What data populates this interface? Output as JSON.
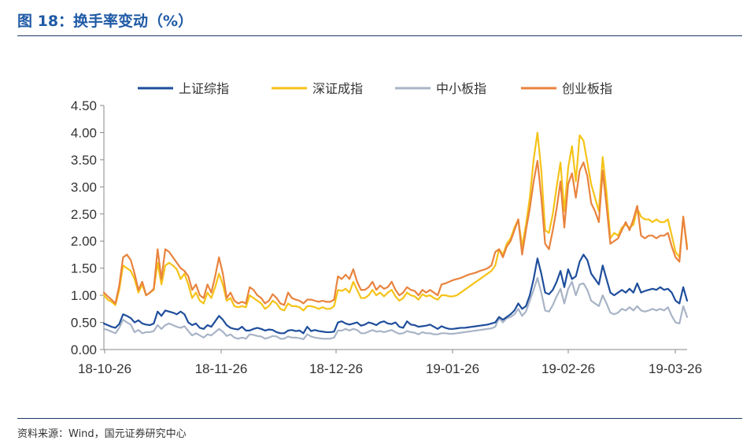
{
  "figure": {
    "title": "图 18：换手率变动（%）",
    "source": "资料来源：Wind，国元证券研究中心"
  },
  "chart_data": {
    "type": "line",
    "title": "换手率变动（%）",
    "xlabel": "",
    "ylabel": "",
    "ylim": [
      0,
      4.5
    ],
    "yticks": [
      "0.00",
      "0.50",
      "1.00",
      "1.50",
      "2.00",
      "2.50",
      "3.00",
      "3.50",
      "4.00",
      "4.50"
    ],
    "xticks": [
      "18-10-26",
      "18-11-26",
      "18-12-26",
      "19-01-26",
      "19-02-26",
      "19-03-26"
    ],
    "legend_position": "top",
    "x": [
      0,
      1,
      2,
      3,
      4,
      5,
      6,
      7,
      8,
      9,
      10,
      11,
      12,
      13,
      14,
      15,
      16,
      17,
      18,
      19,
      20,
      21,
      22,
      23,
      24,
      25,
      26,
      27,
      28,
      29,
      30,
      31,
      32,
      33,
      34,
      35,
      36,
      37,
      38,
      39,
      40,
      41,
      42,
      43,
      44,
      45,
      46,
      47,
      48,
      49,
      50,
      51,
      52,
      53,
      54,
      55,
      56,
      57,
      58,
      59,
      60,
      61,
      62,
      63,
      64,
      65,
      66,
      67,
      68,
      69,
      70,
      71,
      72,
      73,
      74,
      75,
      76,
      77,
      78,
      79,
      80,
      81,
      82,
      83,
      84,
      85,
      86,
      87,
      88,
      89,
      90,
      91,
      92,
      93,
      94,
      95,
      96,
      97,
      98,
      99,
      100,
      101,
      102,
      103,
      104,
      105,
      106,
      107,
      108,
      109,
      110,
      111,
      112,
      113,
      114,
      115,
      116,
      117,
      118,
      119,
      120,
      121,
      122,
      123,
      124,
      125,
      126,
      127,
      128,
      129,
      130,
      131,
      132,
      133,
      134,
      135,
      136,
      137,
      138,
      139,
      140,
      141,
      142,
      143,
      144,
      145,
      146,
      147,
      148,
      149,
      150,
      151,
      152
    ],
    "series": [
      {
        "name": "上证综指",
        "color": "#1f4e9c",
        "values": [
          0.48,
          0.45,
          0.42,
          0.4,
          0.47,
          0.65,
          0.62,
          0.58,
          0.5,
          0.54,
          0.48,
          0.46,
          0.45,
          0.48,
          0.7,
          0.62,
          0.72,
          0.7,
          0.68,
          0.65,
          0.7,
          0.65,
          0.5,
          0.45,
          0.48,
          0.4,
          0.38,
          0.45,
          0.42,
          0.52,
          0.62,
          0.55,
          0.45,
          0.4,
          0.38,
          0.37,
          0.42,
          0.35,
          0.35,
          0.38,
          0.4,
          0.38,
          0.35,
          0.37,
          0.36,
          0.32,
          0.3,
          0.3,
          0.35,
          0.36,
          0.34,
          0.35,
          0.3,
          0.42,
          0.34,
          0.36,
          0.34,
          0.33,
          0.32,
          0.32,
          0.33,
          0.5,
          0.52,
          0.48,
          0.46,
          0.48,
          0.5,
          0.44,
          0.46,
          0.5,
          0.48,
          0.45,
          0.5,
          0.52,
          0.48,
          0.47,
          0.5,
          0.42,
          0.4,
          0.52,
          0.46,
          0.45,
          0.42,
          0.43,
          0.44,
          0.46,
          0.42,
          0.38,
          0.43,
          0.4,
          0.38,
          0.38,
          0.39,
          0.4,
          0.4,
          0.41,
          0.42,
          0.43,
          0.44,
          0.45,
          0.46,
          0.48,
          0.5,
          0.6,
          0.55,
          0.6,
          0.65,
          0.72,
          0.85,
          0.75,
          0.8,
          1.0,
          1.3,
          1.68,
          1.4,
          1.05,
          1.02,
          1.1,
          1.25,
          1.45,
          1.15,
          1.48,
          1.3,
          1.35,
          1.62,
          1.75,
          1.65,
          1.4,
          1.3,
          1.2,
          1.55,
          1.3,
          1.05,
          1.0,
          1.05,
          1.1,
          1.05,
          1.12,
          1.05,
          1.22,
          1.05,
          1.08,
          1.1,
          1.12,
          1.1,
          1.15,
          1.1,
          1.12,
          1.05,
          0.9,
          0.85,
          1.15,
          0.9
        ]
      },
      {
        "name": "深证成指",
        "color": "#f5c318",
        "values": [
          1.0,
          0.92,
          0.88,
          0.82,
          1.1,
          1.55,
          1.5,
          1.45,
          1.3,
          1.05,
          1.2,
          1.0,
          1.05,
          1.1,
          1.6,
          1.2,
          1.55,
          1.6,
          1.55,
          1.48,
          1.3,
          1.4,
          1.2,
          0.95,
          1.05,
          0.9,
          0.85,
          1.05,
          0.95,
          1.15,
          1.4,
          1.2,
          0.9,
          0.95,
          0.8,
          0.78,
          0.8,
          0.78,
          1.0,
          0.95,
          0.9,
          0.85,
          0.75,
          0.8,
          0.9,
          0.85,
          0.75,
          0.72,
          0.85,
          0.8,
          0.8,
          0.78,
          0.72,
          0.8,
          0.8,
          0.78,
          0.75,
          0.78,
          0.75,
          0.75,
          0.8,
          1.1,
          1.08,
          1.12,
          1.05,
          1.25,
          1.1,
          0.95,
          0.95,
          1.0,
          1.1,
          1.0,
          1.05,
          0.98,
          1.05,
          1.1,
          0.98,
          0.9,
          0.95,
          1.05,
          1.0,
          0.98,
          0.92,
          1.02,
          0.98,
          1.0,
          0.95,
          0.92,
          1.0,
          1.0,
          0.98,
          0.98,
          1.0,
          1.05,
          1.1,
          1.15,
          1.2,
          1.25,
          1.3,
          1.35,
          1.4,
          1.45,
          1.55,
          1.85,
          1.75,
          1.95,
          2.05,
          2.25,
          2.4,
          1.9,
          2.3,
          2.8,
          3.5,
          4.0,
          3.3,
          2.2,
          2.15,
          2.5,
          3.0,
          3.45,
          2.55,
          3.35,
          3.75,
          3.1,
          3.95,
          3.85,
          3.45,
          3.05,
          2.8,
          2.55,
          3.55,
          2.9,
          2.05,
          2.15,
          2.1,
          2.25,
          2.3,
          2.25,
          2.3,
          2.6,
          2.45,
          2.4,
          2.4,
          2.35,
          2.4,
          2.35,
          2.35,
          2.4,
          2.1,
          1.8,
          1.7,
          2.45,
          1.9
        ]
      },
      {
        "name": "中小板指",
        "color": "#a8b4c6",
        "values": [
          0.38,
          0.36,
          0.33,
          0.3,
          0.4,
          0.55,
          0.5,
          0.46,
          0.32,
          0.36,
          0.3,
          0.32,
          0.32,
          0.34,
          0.45,
          0.38,
          0.45,
          0.48,
          0.45,
          0.42,
          0.4,
          0.43,
          0.34,
          0.26,
          0.3,
          0.26,
          0.22,
          0.28,
          0.26,
          0.32,
          0.38,
          0.33,
          0.25,
          0.28,
          0.22,
          0.2,
          0.22,
          0.2,
          0.28,
          0.27,
          0.25,
          0.24,
          0.2,
          0.22,
          0.25,
          0.24,
          0.2,
          0.2,
          0.24,
          0.22,
          0.22,
          0.21,
          0.19,
          0.28,
          0.24,
          0.22,
          0.21,
          0.2,
          0.2,
          0.2,
          0.22,
          0.35,
          0.35,
          0.38,
          0.35,
          0.38,
          0.36,
          0.3,
          0.3,
          0.33,
          0.36,
          0.33,
          0.34,
          0.32,
          0.34,
          0.36,
          0.32,
          0.29,
          0.3,
          0.34,
          0.32,
          0.31,
          0.28,
          0.32,
          0.3,
          0.3,
          0.28,
          0.28,
          0.3,
          0.3,
          0.29,
          0.29,
          0.3,
          0.31,
          0.32,
          0.33,
          0.34,
          0.35,
          0.36,
          0.37,
          0.38,
          0.39,
          0.42,
          0.58,
          0.5,
          0.58,
          0.6,
          0.65,
          0.75,
          0.62,
          0.7,
          0.9,
          1.1,
          1.32,
          1.05,
          0.72,
          0.7,
          0.82,
          0.98,
          1.12,
          0.85,
          1.12,
          1.25,
          1.0,
          1.2,
          1.22,
          1.1,
          0.9,
          0.85,
          0.8,
          1.0,
          0.85,
          0.68,
          0.65,
          0.68,
          0.75,
          0.72,
          0.78,
          0.72,
          0.8,
          0.72,
          0.7,
          0.72,
          0.75,
          0.72,
          0.75,
          0.72,
          0.78,
          0.62,
          0.5,
          0.48,
          0.8,
          0.6
        ]
      },
      {
        "name": "创业板指",
        "color": "#e9833e",
        "values": [
          1.05,
          0.98,
          0.92,
          0.85,
          1.18,
          1.7,
          1.75,
          1.65,
          1.4,
          1.1,
          1.25,
          1.0,
          1.05,
          1.12,
          1.85,
          1.3,
          1.85,
          1.8,
          1.7,
          1.6,
          1.5,
          1.45,
          1.35,
          1.1,
          1.2,
          1.0,
          0.95,
          1.2,
          1.05,
          1.35,
          1.7,
          1.4,
          0.95,
          1.05,
          0.9,
          0.85,
          0.88,
          0.85,
          1.15,
          1.1,
          1.0,
          0.95,
          0.85,
          0.9,
          1.02,
          0.95,
          0.85,
          0.82,
          1.05,
          0.95,
          0.92,
          0.9,
          0.85,
          0.92,
          0.92,
          0.9,
          0.88,
          0.9,
          0.88,
          0.88,
          0.92,
          1.35,
          1.3,
          1.38,
          1.3,
          1.48,
          1.25,
          1.1,
          1.1,
          1.15,
          1.25,
          1.1,
          1.18,
          1.12,
          1.15,
          1.25,
          1.1,
          1.0,
          1.05,
          1.15,
          1.1,
          1.08,
          1.0,
          1.1,
          1.05,
          1.1,
          1.05,
          1.0,
          1.2,
          1.22,
          1.25,
          1.28,
          1.3,
          1.32,
          1.35,
          1.38,
          1.4,
          1.42,
          1.45,
          1.47,
          1.5,
          1.55,
          1.8,
          1.85,
          1.7,
          1.9,
          2.0,
          2.2,
          2.4,
          1.75,
          2.2,
          2.6,
          3.1,
          3.48,
          2.8,
          1.95,
          1.85,
          2.2,
          2.6,
          3.1,
          2.25,
          3.05,
          3.25,
          2.8,
          3.3,
          3.45,
          3.2,
          2.7,
          2.55,
          2.35,
          3.3,
          2.65,
          1.95,
          2.0,
          2.05,
          2.2,
          2.35,
          2.2,
          2.4,
          2.65,
          2.1,
          2.05,
          2.1,
          2.1,
          2.05,
          2.1,
          2.1,
          2.15,
          1.9,
          1.7,
          1.62,
          2.45,
          1.85
        ]
      }
    ]
  }
}
